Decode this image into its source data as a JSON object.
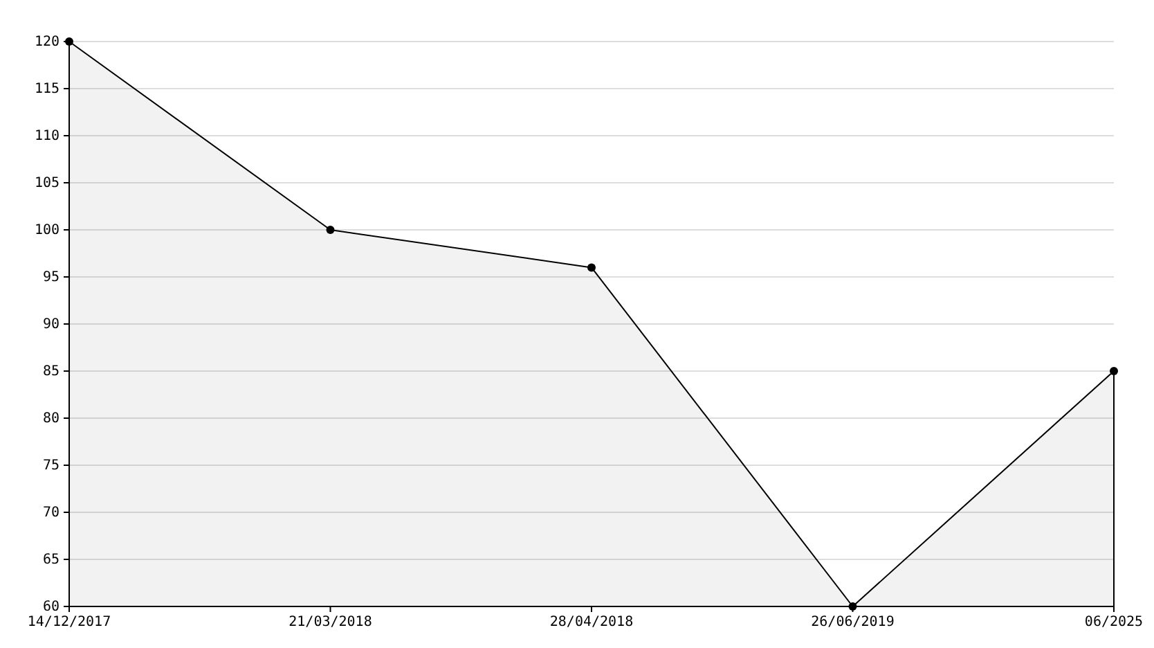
{
  "chart_data": {
    "type": "area",
    "categories": [
      "14/12/2017",
      "21/03/2018",
      "28/04/2018",
      "26/06/2019",
      "06/2025"
    ],
    "series": [
      {
        "color": "#000000",
        "values": [
          120,
          100,
          96,
          60,
          85
        ]
      }
    ],
    "ylim": [
      60,
      120
    ],
    "yticks": [
      60,
      65,
      70,
      75,
      80,
      85,
      90,
      95,
      100,
      105,
      110,
      115,
      120
    ],
    "grid": "y",
    "marker": "circle",
    "line_style": "solid"
  }
}
